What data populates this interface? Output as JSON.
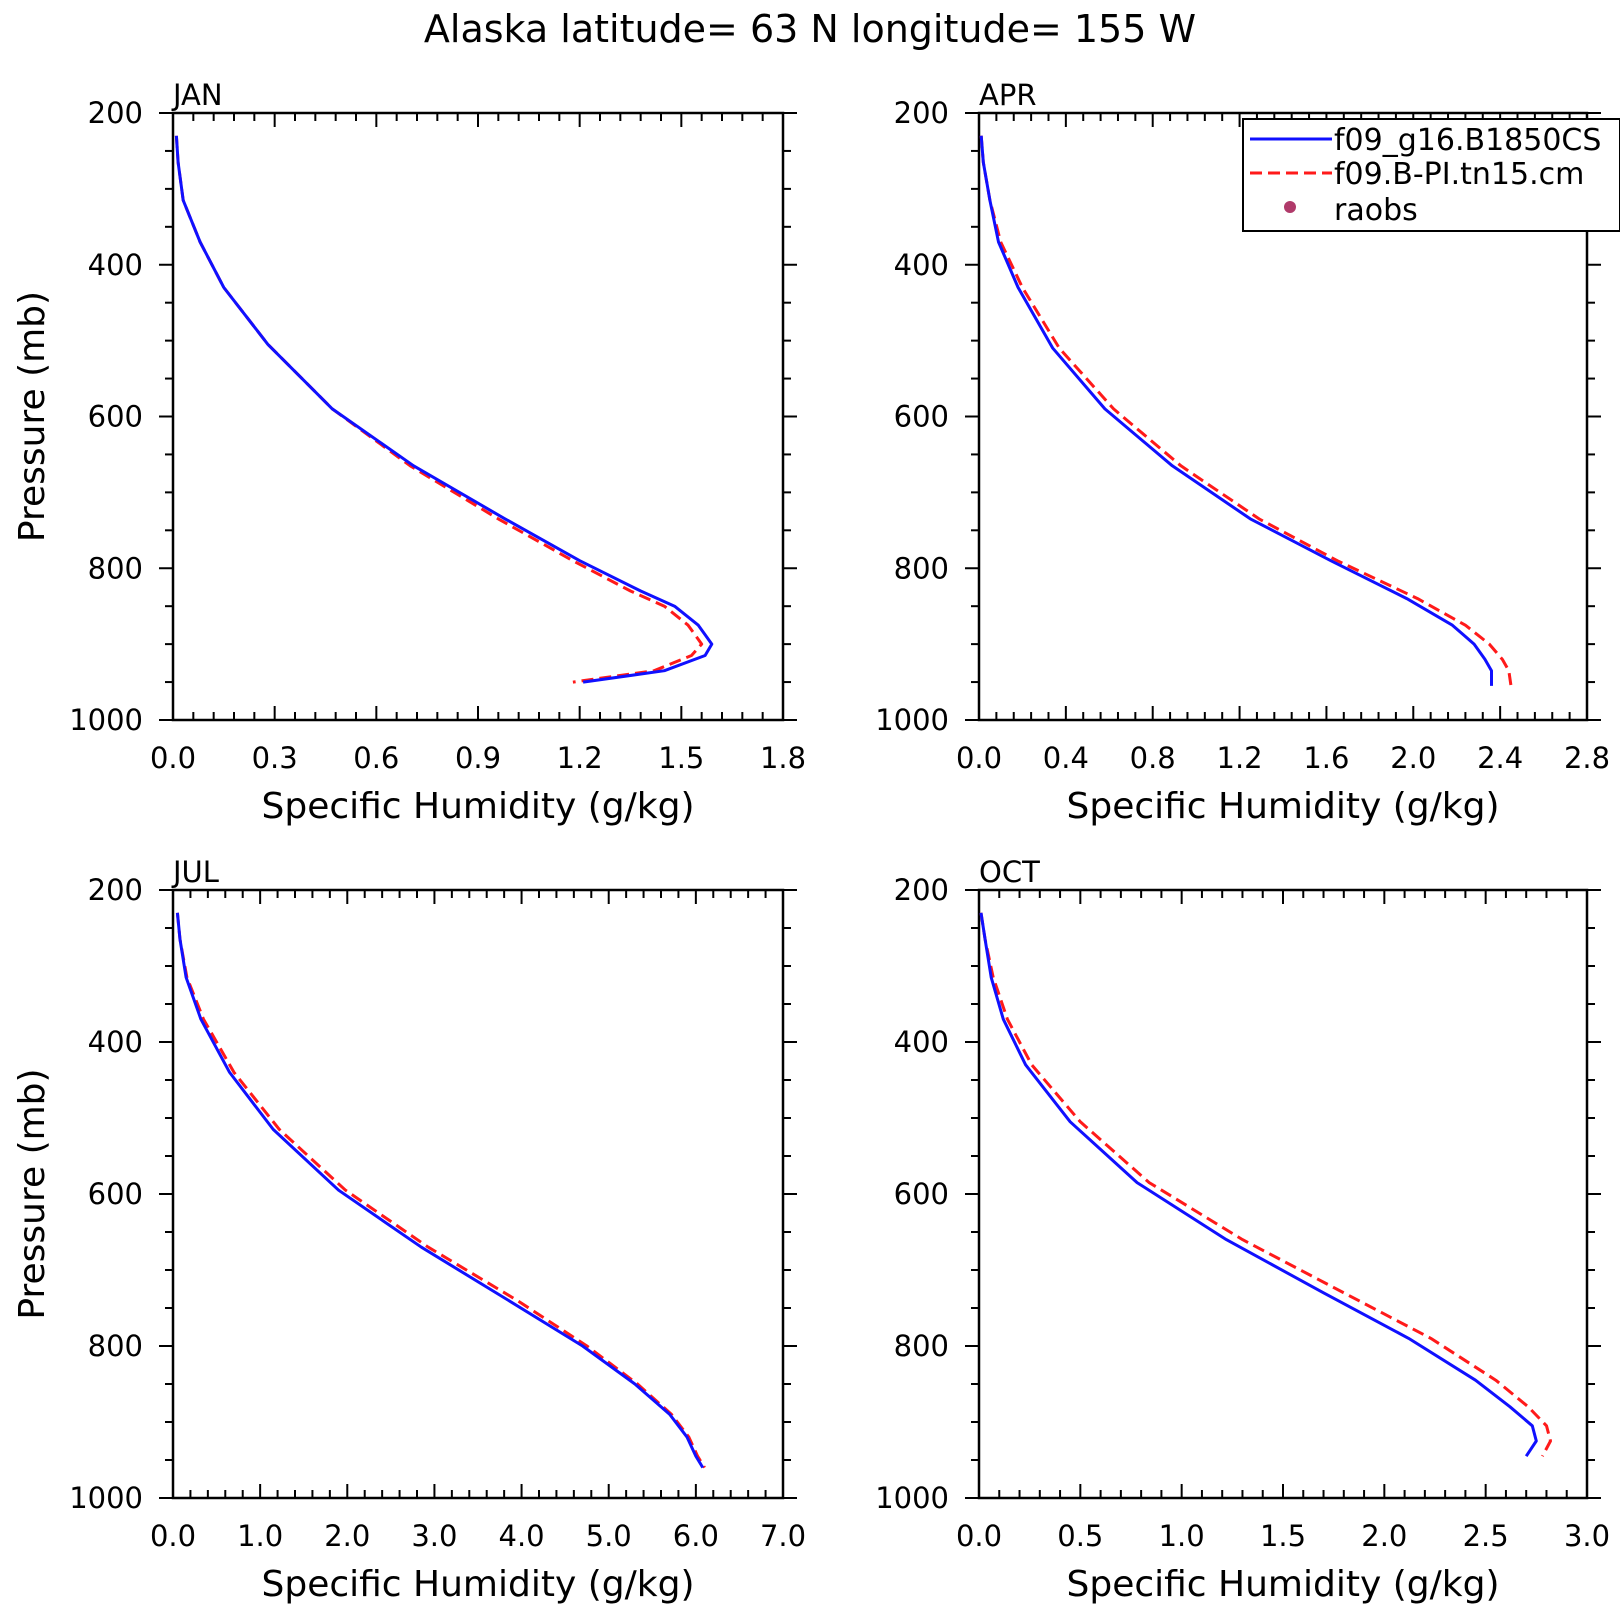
{
  "title": "Alaska  latitude= 63 N longitude= 155 W",
  "legend": {
    "placement": "top-right of APR panel",
    "entries": [
      {
        "label": "f09_g16.B1850CS",
        "color": "#1010ff",
        "style": "solid"
      },
      {
        "label": "f09.B-PI.tn15.cm",
        "color": "#ff1a1a",
        "style": "dashed"
      },
      {
        "label": "raobs",
        "color": "#b03a6a",
        "style": "dot"
      }
    ]
  },
  "chart_data": [
    {
      "type": "line",
      "title": "JAN",
      "xlabel": "Specific Humidity (g/kg)",
      "ylabel": "Pressure (mb)",
      "xlim": [
        0,
        1.8
      ],
      "xticks": [
        "0.0",
        "0.3",
        "0.6",
        "0.9",
        "1.2",
        "1.5",
        "1.8"
      ],
      "ylim": [
        200,
        1000
      ],
      "yticks": [
        "200",
        "400",
        "600",
        "800",
        "1000"
      ],
      "y_inverted": true,
      "series": [
        {
          "name": "f09_g16.B1850CS",
          "color": "#1010ff",
          "dash": false,
          "points": [
            [
              0.01,
              230
            ],
            [
              0.015,
              265
            ],
            [
              0.03,
              315
            ],
            [
              0.08,
              370
            ],
            [
              0.15,
              430
            ],
            [
              0.28,
              505
            ],
            [
              0.47,
              590
            ],
            [
              0.71,
              665
            ],
            [
              0.98,
              735
            ],
            [
              1.2,
              790
            ],
            [
              1.38,
              830
            ],
            [
              1.48,
              850
            ],
            [
              1.55,
              875
            ],
            [
              1.59,
              900
            ],
            [
              1.57,
              915
            ],
            [
              1.45,
              935
            ],
            [
              1.21,
              950
            ]
          ]
        },
        {
          "name": "f09.B-PI.tn15.cm",
          "color": "#ff1a1a",
          "dash": true,
          "points": [
            [
              0.01,
              230
            ],
            [
              0.015,
              265
            ],
            [
              0.03,
              315
            ],
            [
              0.08,
              370
            ],
            [
              0.15,
              430
            ],
            [
              0.28,
              505
            ],
            [
              0.47,
              590
            ],
            [
              0.7,
              665
            ],
            [
              0.96,
              735
            ],
            [
              1.18,
              790
            ],
            [
              1.35,
              830
            ],
            [
              1.45,
              850
            ],
            [
              1.52,
              875
            ],
            [
              1.56,
              900
            ],
            [
              1.53,
              915
            ],
            [
              1.42,
              935
            ],
            [
              1.18,
              950
            ]
          ]
        }
      ]
    },
    {
      "type": "line",
      "title": "APR",
      "xlabel": "Specific Humidity (g/kg)",
      "ylabel": "",
      "xlim": [
        0,
        2.8
      ],
      "xticks": [
        "0.0",
        "0.4",
        "0.8",
        "1.2",
        "1.6",
        "2.0",
        "2.4",
        "2.8"
      ],
      "ylim": [
        200,
        1000
      ],
      "yticks": [
        "200",
        "400",
        "600",
        "800",
        "1000"
      ],
      "y_inverted": true,
      "series": [
        {
          "name": "f09_g16.B1850CS",
          "color": "#1010ff",
          "dash": false,
          "points": [
            [
              0.01,
              230
            ],
            [
              0.02,
              265
            ],
            [
              0.05,
              315
            ],
            [
              0.09,
              370
            ],
            [
              0.18,
              430
            ],
            [
              0.34,
              510
            ],
            [
              0.58,
              590
            ],
            [
              0.89,
              665
            ],
            [
              1.25,
              735
            ],
            [
              1.62,
              790
            ],
            [
              1.97,
              840
            ],
            [
              2.18,
              875
            ],
            [
              2.28,
              900
            ],
            [
              2.33,
              920
            ],
            [
              2.36,
              935
            ],
            [
              2.36,
              955
            ]
          ]
        },
        {
          "name": "f09.B-PI.tn15.cm",
          "color": "#ff1a1a",
          "dash": true,
          "points": [
            [
              0.01,
              230
            ],
            [
              0.02,
              265
            ],
            [
              0.05,
              315
            ],
            [
              0.1,
              370
            ],
            [
              0.2,
              430
            ],
            [
              0.37,
              510
            ],
            [
              0.62,
              590
            ],
            [
              0.93,
              665
            ],
            [
              1.29,
              735
            ],
            [
              1.65,
              790
            ],
            [
              2.02,
              840
            ],
            [
              2.24,
              875
            ],
            [
              2.35,
              900
            ],
            [
              2.41,
              920
            ],
            [
              2.44,
              935
            ],
            [
              2.45,
              955
            ]
          ]
        }
      ]
    },
    {
      "type": "line",
      "title": "JUL",
      "xlabel": "Specific Humidity (g/kg)",
      "ylabel": "Pressure (mb)",
      "xlim": [
        0,
        7.0
      ],
      "xticks": [
        "0.0",
        "1.0",
        "2.0",
        "3.0",
        "4.0",
        "5.0",
        "6.0",
        "7.0"
      ],
      "ylim": [
        200,
        1000
      ],
      "yticks": [
        "200",
        "400",
        "600",
        "800",
        "1000"
      ],
      "y_inverted": true,
      "series": [
        {
          "name": "f09_g16.B1850CS",
          "color": "#1010ff",
          "dash": false,
          "points": [
            [
              0.05,
              230
            ],
            [
              0.08,
              265
            ],
            [
              0.15,
              315
            ],
            [
              0.32,
              370
            ],
            [
              0.65,
              440
            ],
            [
              1.15,
              515
            ],
            [
              1.9,
              595
            ],
            [
              2.85,
              670
            ],
            [
              3.85,
              740
            ],
            [
              4.7,
              800
            ],
            [
              5.3,
              850
            ],
            [
              5.7,
              890
            ],
            [
              5.9,
              920
            ],
            [
              6.0,
              945
            ],
            [
              6.08,
              960
            ]
          ]
        },
        {
          "name": "f09.B-PI.tn15.cm",
          "color": "#ff1a1a",
          "dash": true,
          "points": [
            [
              0.05,
              230
            ],
            [
              0.08,
              265
            ],
            [
              0.16,
              315
            ],
            [
              0.35,
              370
            ],
            [
              0.7,
              440
            ],
            [
              1.22,
              515
            ],
            [
              1.98,
              595
            ],
            [
              2.93,
              670
            ],
            [
              3.95,
              740
            ],
            [
              4.75,
              800
            ],
            [
              5.33,
              850
            ],
            [
              5.72,
              890
            ],
            [
              5.92,
              920
            ],
            [
              6.02,
              945
            ],
            [
              6.1,
              960
            ]
          ]
        }
      ]
    },
    {
      "type": "line",
      "title": "OCT",
      "xlabel": "Specific Humidity (g/kg)",
      "ylabel": "",
      "xlim": [
        0,
        3.0
      ],
      "xticks": [
        "0.0",
        "0.5",
        "1.0",
        "1.5",
        "2.0",
        "2.5",
        "3.0"
      ],
      "ylim": [
        200,
        1000
      ],
      "yticks": [
        "200",
        "400",
        "600",
        "800",
        "1000"
      ],
      "y_inverted": true,
      "series": [
        {
          "name": "f09_g16.B1850CS",
          "color": "#1010ff",
          "dash": false,
          "points": [
            [
              0.01,
              230
            ],
            [
              0.03,
              265
            ],
            [
              0.06,
              315
            ],
            [
              0.12,
              370
            ],
            [
              0.23,
              430
            ],
            [
              0.45,
              505
            ],
            [
              0.78,
              585
            ],
            [
              1.22,
              660
            ],
            [
              1.7,
              730
            ],
            [
              2.12,
              790
            ],
            [
              2.45,
              845
            ],
            [
              2.62,
              880
            ],
            [
              2.73,
              905
            ],
            [
              2.75,
              925
            ],
            [
              2.7,
              945
            ]
          ]
        },
        {
          "name": "f09.B-PI.tn15.cm",
          "color": "#ff1a1a",
          "dash": true,
          "points": [
            [
              0.01,
              230
            ],
            [
              0.03,
              265
            ],
            [
              0.07,
              315
            ],
            [
              0.14,
              370
            ],
            [
              0.26,
              430
            ],
            [
              0.5,
              505
            ],
            [
              0.84,
              585
            ],
            [
              1.3,
              660
            ],
            [
              1.8,
              730
            ],
            [
              2.23,
              790
            ],
            [
              2.55,
              845
            ],
            [
              2.71,
              880
            ],
            [
              2.8,
              905
            ],
            [
              2.82,
              925
            ],
            [
              2.78,
              945
            ]
          ]
        }
      ]
    }
  ]
}
